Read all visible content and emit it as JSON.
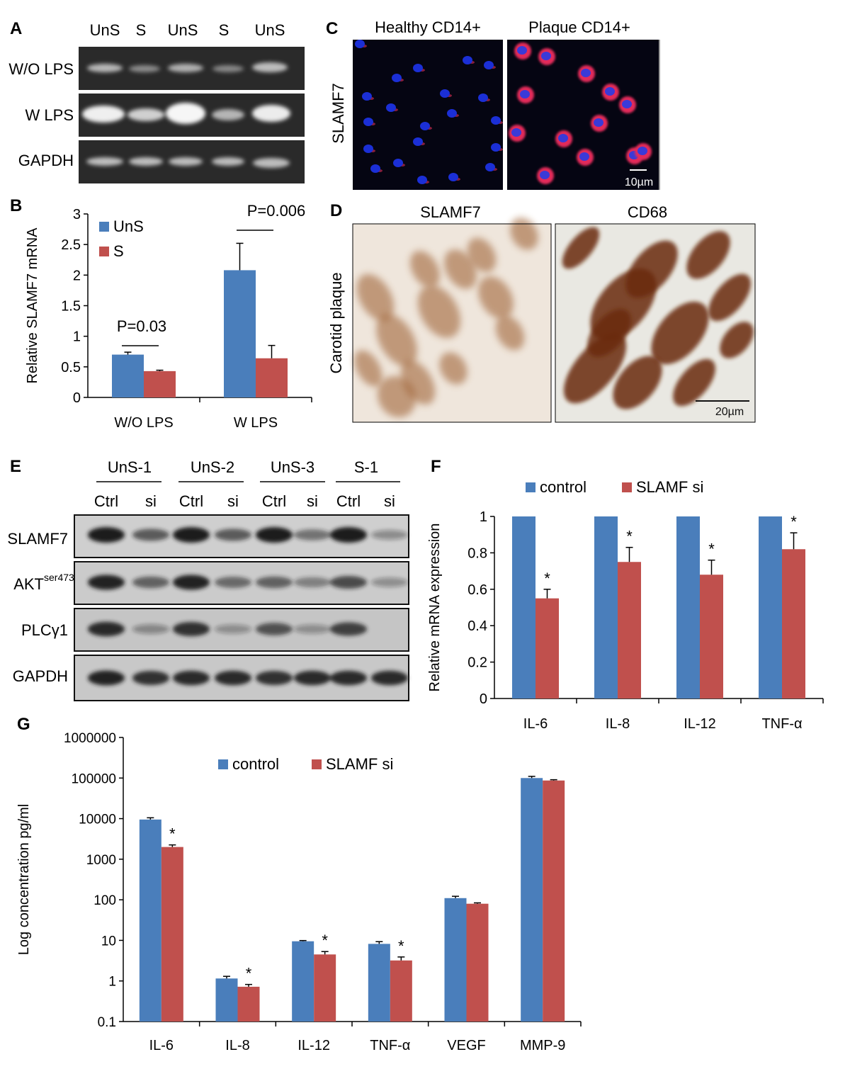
{
  "colors": {
    "blue": "#4a7ebb",
    "red": "#c0504d",
    "axis": "#000000",
    "gel_bg": "#2a2a2a",
    "gel_band": "#e8e8e8",
    "confocal_bg": "#050512",
    "nucleus": "#1b2fd6",
    "membrane": "#e22a5a",
    "ihc_bg": "#efe6dc",
    "ihc_brown": "#8a4a1c",
    "wb_bg": "#c8c8c8",
    "wb_band": "#1e1e1e"
  },
  "panels": {
    "A": {
      "label": "A",
      "lanes": [
        "UnS",
        "S",
        "UnS",
        "S",
        "UnS"
      ],
      "rows": [
        "W/O LPS",
        "W LPS",
        "GAPDH"
      ]
    },
    "C": {
      "label": "C",
      "titles": [
        "Healthy CD14+",
        "Plaque CD14+"
      ],
      "ylabel": "SLAMF7",
      "scalebar": "10µm"
    },
    "D": {
      "label": "D",
      "titles": [
        "SLAMF7",
        "CD68"
      ],
      "ylabel": "Carotid plaque",
      "scalebar": "20µm"
    },
    "E": {
      "label": "E",
      "groups": [
        "UnS-1",
        "UnS-2",
        "UnS-3",
        "S-1"
      ],
      "lanes": [
        "Ctrl",
        "si",
        "Ctrl",
        "si",
        "Ctrl",
        "si",
        "Ctrl",
        "si"
      ],
      "rows": [
        "SLAMF7",
        "AKT",
        "PLCγ1",
        "GAPDH"
      ],
      "akt_sup": "ser473"
    }
  },
  "chart_data": [
    {
      "panel": "B",
      "type": "bar",
      "ylabel": "Relative SLAMF7 mRNA",
      "categories": [
        "W/O LPS",
        "W LPS"
      ],
      "series": [
        {
          "name": "UnS",
          "values": [
            0.7,
            2.08
          ],
          "errors": [
            0.04,
            0.44
          ]
        },
        {
          "name": "S",
          "values": [
            0.43,
            0.64
          ],
          "errors": [
            0.015,
            0.21
          ]
        }
      ],
      "ylim": [
        0,
        3
      ],
      "yticks": [
        "0",
        "0.5",
        "1",
        "1.5",
        "2",
        "2.5",
        "3"
      ],
      "annotations": [
        "P=0.03",
        "P=0.006"
      ],
      "legend": "top-left"
    },
    {
      "panel": "F",
      "type": "bar",
      "ylabel": "Relative mRNA expression",
      "categories": [
        "IL-6",
        "IL-8",
        "IL-12",
        "TNF-α"
      ],
      "series": [
        {
          "name": "control",
          "values": [
            1,
            1,
            1,
            1
          ],
          "errors": [
            0,
            0,
            0,
            0
          ]
        },
        {
          "name": "SLAMF si",
          "values": [
            0.55,
            0.75,
            0.68,
            0.82
          ],
          "errors": [
            0.05,
            0.08,
            0.08,
            0.09
          ]
        }
      ],
      "ylim": [
        0,
        1
      ],
      "yticks": [
        "0",
        "0.2",
        "0.4",
        "0.6",
        "0.8",
        "1"
      ],
      "significance": [
        "*",
        "*",
        "*",
        "*"
      ],
      "legend": "top"
    },
    {
      "panel": "G",
      "type": "bar",
      "scale": "log",
      "ylabel": "Log concentration pg/ml",
      "categories": [
        "IL-6",
        "IL-8",
        "IL-12",
        "TNF-α",
        "VEGF",
        "MMP-9"
      ],
      "series": [
        {
          "name": "control",
          "values": [
            9500,
            1.15,
            9.5,
            8.2,
            110,
            100000
          ],
          "errors": [
            1000,
            0.15,
            0.4,
            1.1,
            12,
            10000
          ]
        },
        {
          "name": "SLAMF si",
          "values": [
            2000,
            0.72,
            4.5,
            3.2,
            80,
            87000
          ],
          "errors": [
            250,
            0.1,
            0.8,
            0.7,
            4,
            4000
          ]
        }
      ],
      "ylim": [
        0.1,
        1000000
      ],
      "yticks": [
        "0.1",
        "1",
        "10",
        "100",
        "1000",
        "10000",
        "100000",
        "1000000"
      ],
      "significance": [
        "*",
        "*",
        "*",
        "*",
        "",
        ""
      ],
      "legend": "top"
    }
  ]
}
